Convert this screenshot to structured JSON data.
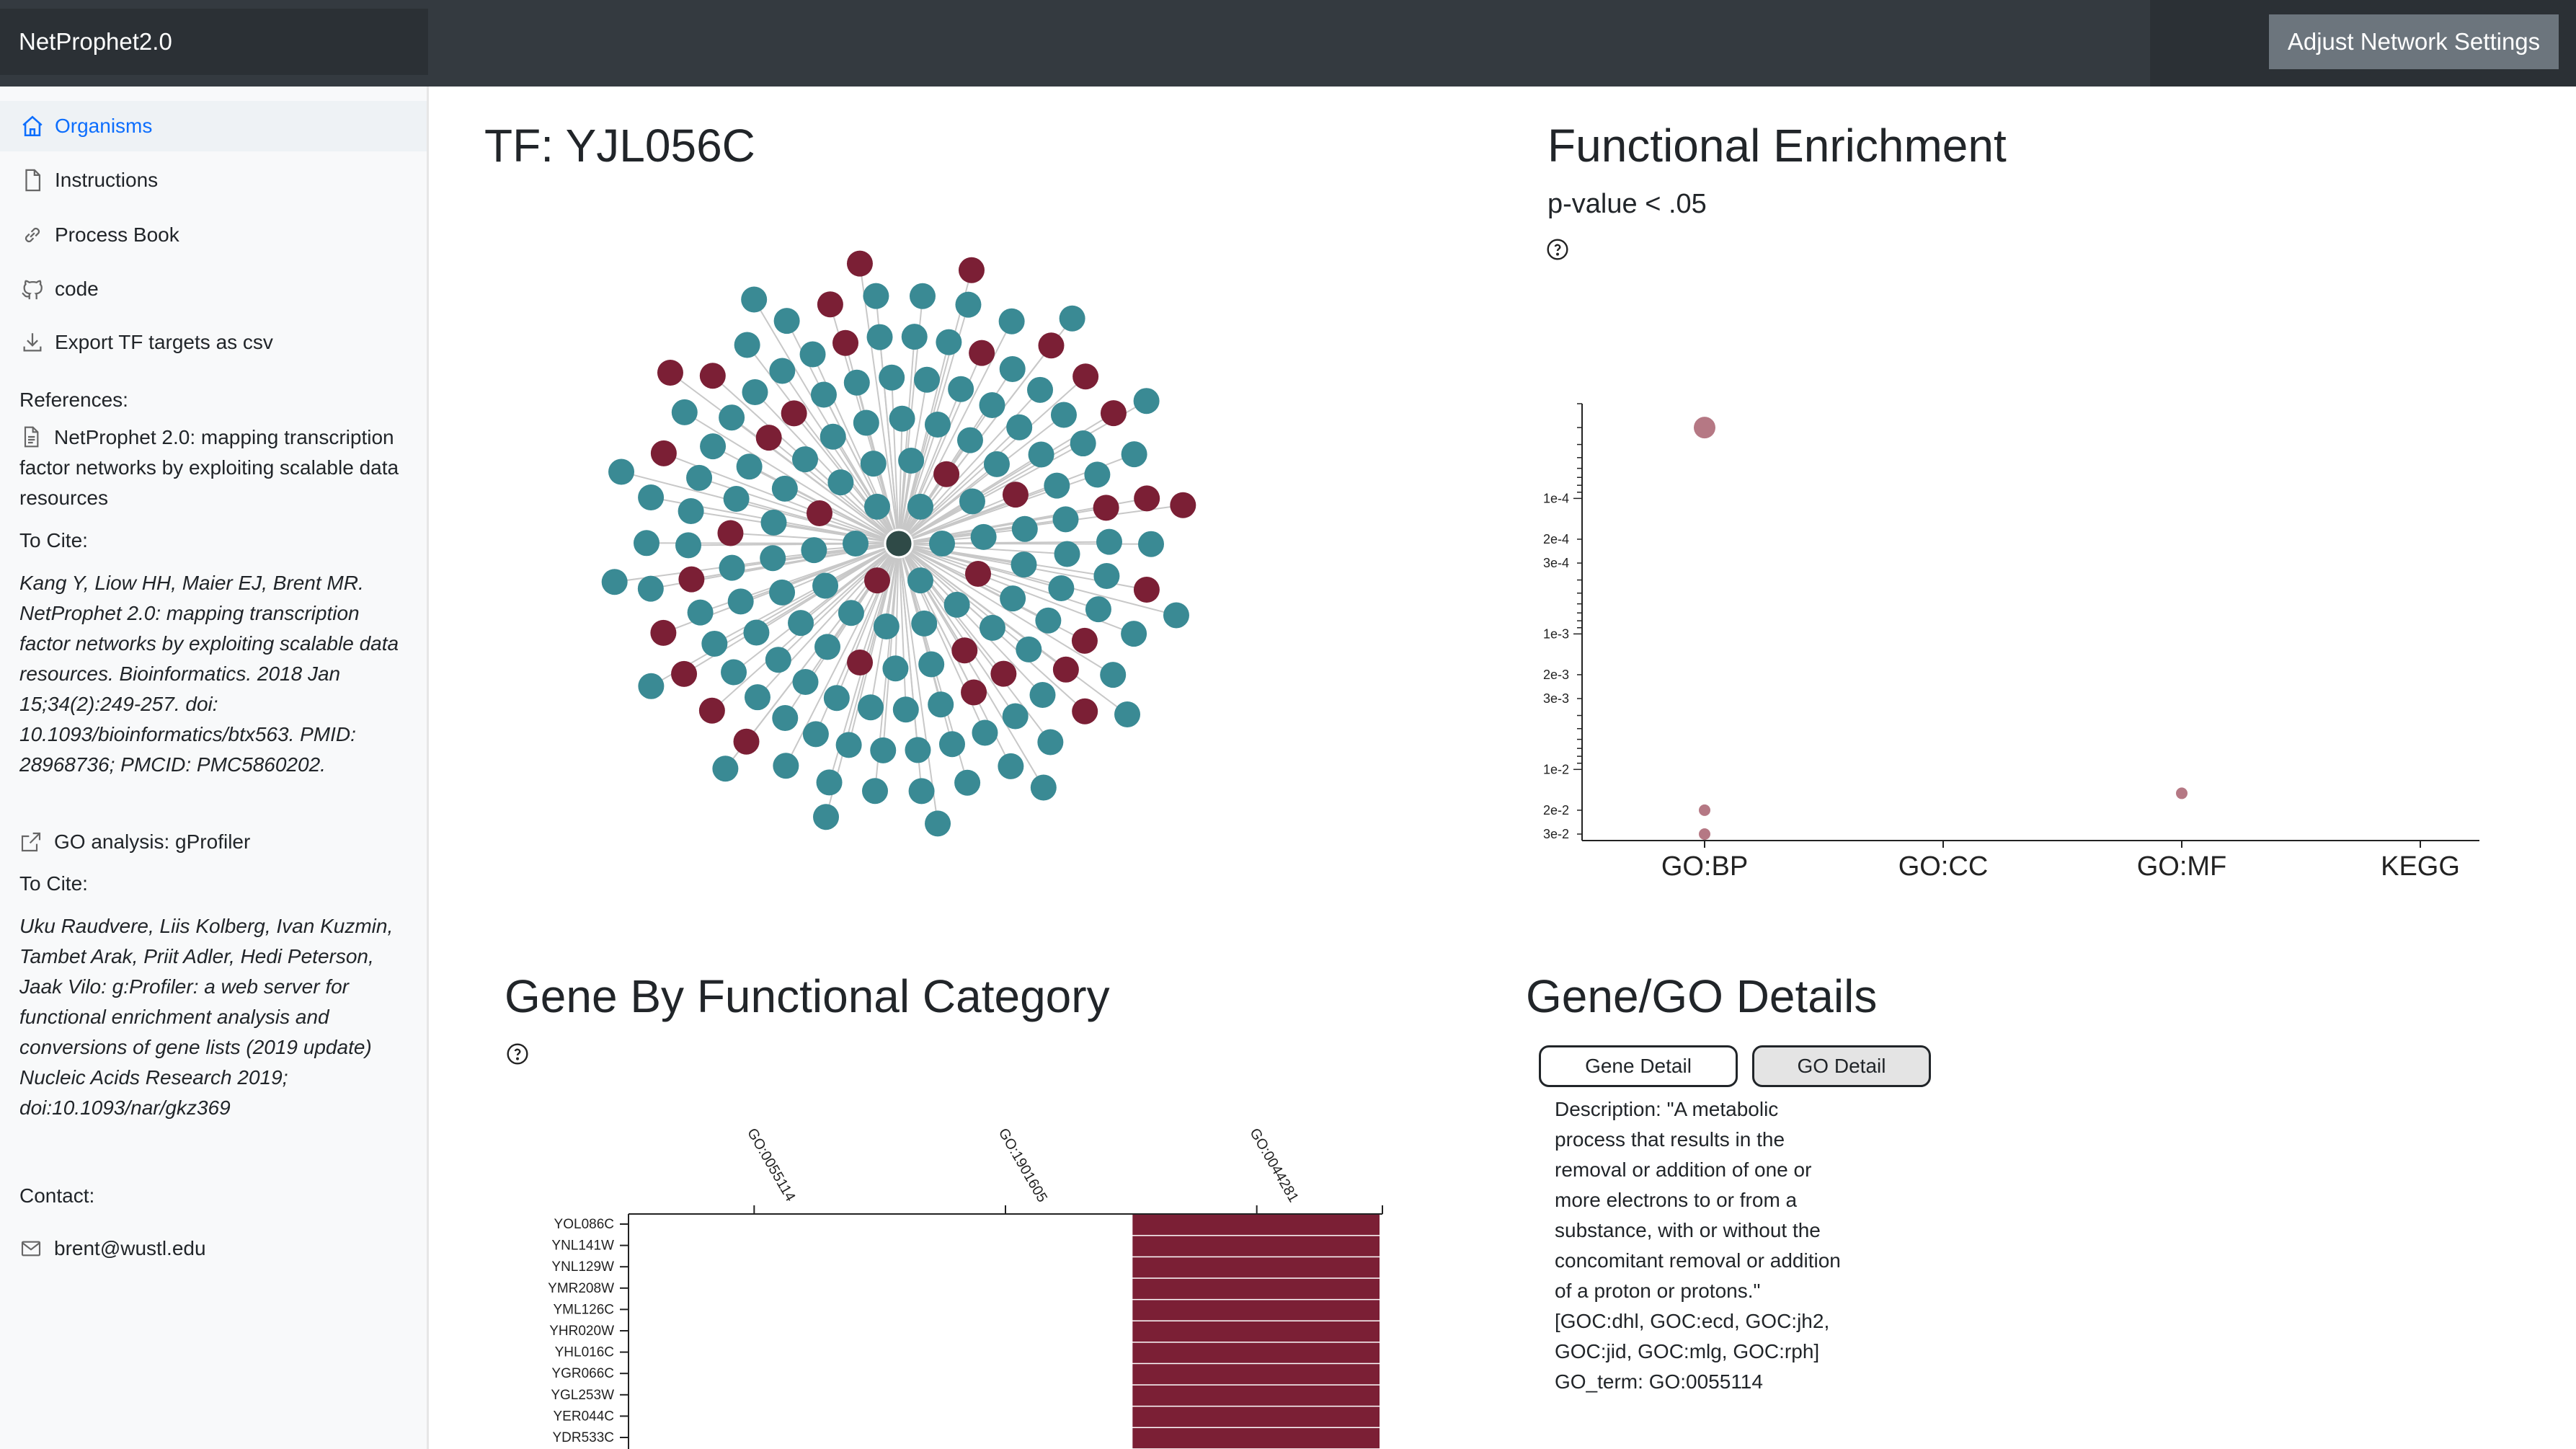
{
  "app": {
    "title": "NetProphet2.0",
    "settings_button": "Adjust Network Settings"
  },
  "sidebar": {
    "items": [
      {
        "label": "Organisms",
        "icon": "home-icon",
        "active": true
      },
      {
        "label": "Instructions",
        "icon": "file-icon"
      },
      {
        "label": "Process Book",
        "icon": "link-icon"
      },
      {
        "label": "code",
        "icon": "github-icon"
      },
      {
        "label": "Export TF targets as csv",
        "icon": "download-icon"
      }
    ],
    "references_label": "References:",
    "ref1_title": "NetProphet 2.0: mapping transcription factor networks by exploiting scalable data resources",
    "to_cite_1": "To Cite:",
    "citation1": "Kang Y, Liow HH, Maier EJ, Brent MR. NetProphet 2.0: mapping transcription factor networks by exploiting scalable data resources. Bioinformatics. 2018 Jan 15;34(2):249-257. doi: 10.1093/bioinformatics/btx563. PMID: 28968736; PMCID: PMC5860202.",
    "go_analysis_link": "GO analysis: gProfiler",
    "to_cite_2": "To Cite:",
    "citation2": "Uku Raudvere, Liis Kolberg, Ivan Kuzmin, Tambet Arak, Priit Adler, Hedi Peterson, Jaak Vilo: g:Profiler: a web server for functional enrichment analysis and conversions of gene lists (2019 update) Nucleic Acids Research 2019; doi:10.1093/nar/gkz369",
    "contact_label": "Contact:",
    "email": "brent@wustl.edu"
  },
  "network": {
    "title": "TF: YJL056C",
    "colors": {
      "target": "#3a8a94",
      "highlight": "#7b1f35",
      "center": "#2f4a47",
      "edge": "#c8c8c8"
    }
  },
  "enrichment": {
    "title": "Functional Enrichment",
    "subtitle": "p-value < .05",
    "point_color": "#a8606e"
  },
  "chart_data": [
    {
      "type": "scatter",
      "title": "",
      "categories": [
        "GO:BP",
        "GO:CC",
        "GO:MF",
        "KEGG"
      ],
      "y_scale": "log",
      "y_reversed": true,
      "y_ticks": [
        "1e-4",
        "2e-4",
        "3e-4",
        "1e-3",
        "2e-3",
        "3e-3",
        "1e-2",
        "2e-2",
        "3e-2"
      ],
      "points": [
        {
          "category": "GO:BP",
          "p": 3e-05,
          "size": "large"
        },
        {
          "category": "GO:BP",
          "p": 0.02,
          "size": "small"
        },
        {
          "category": "GO:BP",
          "p": 0.03,
          "size": "small"
        },
        {
          "category": "GO:MF",
          "p": 0.015,
          "size": "small"
        }
      ]
    },
    {
      "type": "heatmap",
      "title": "Gene By Functional Category",
      "columns": [
        "GO:0055114",
        "GO:1901605",
        "GO:0044281"
      ],
      "rows": [
        "YOL086C",
        "YNL141W",
        "YNL129W",
        "YMR208W",
        "YML126C",
        "YHR020W",
        "YHL016C",
        "YGR066C",
        "YGL253W",
        "YER044C",
        "YDR533C"
      ],
      "values": [
        [
          0,
          0,
          1
        ],
        [
          0,
          0,
          1
        ],
        [
          0,
          0,
          1
        ],
        [
          0,
          0,
          1
        ],
        [
          0,
          0,
          1
        ],
        [
          0,
          0,
          1
        ],
        [
          0,
          0,
          1
        ],
        [
          0,
          0,
          1
        ],
        [
          0,
          0,
          1
        ],
        [
          0,
          0,
          1
        ],
        [
          0,
          0,
          1
        ]
      ],
      "fill_color": "#7b1f35"
    }
  ],
  "gene_by_category": {
    "title": "Gene By Functional Category"
  },
  "details": {
    "title": "Gene/GO Details",
    "gene_tab": "Gene Detail",
    "go_tab": "GO Detail",
    "description": "Description: \"A metabolic process that results in the removal or addition of one or more electrons to or from a substance, with or without the concomitant removal or addition of a proton or protons.\" [GOC:dhl, GOC:ecd, GOC:jh2, GOC:jid, GOC:mlg, GOC:rph]",
    "go_term": "GO_term: GO:0055114"
  }
}
